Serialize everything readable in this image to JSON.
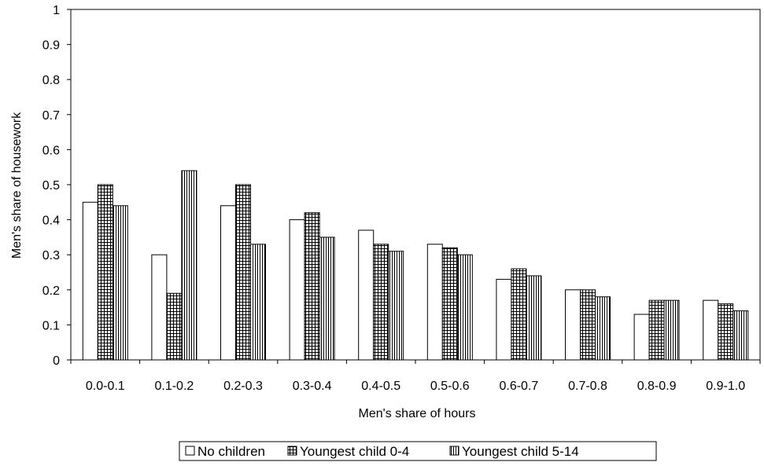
{
  "chart_data": {
    "type": "bar",
    "title": "",
    "xlabel": "Men's share of hours",
    "ylabel": "Men's share of housework",
    "ylim": [
      0,
      1
    ],
    "yticks": [
      "0",
      "0.1",
      "0.2",
      "0.3",
      "0.4",
      "0.5",
      "0.6",
      "0.7",
      "0.8",
      "0.9",
      "1"
    ],
    "grid": false,
    "legend_position": "bottom",
    "categories": [
      "0.0-0.1",
      "0.1-0.2",
      "0.2-0.3",
      "0.3-0.4",
      "0.4-0.5",
      "0.5-0.6",
      "0.6-0.7",
      "0.7-0.8",
      "0.8-0.9",
      "0.9-1.0"
    ],
    "series": [
      {
        "name": "No children",
        "pattern": "solid-white",
        "values": [
          0.45,
          0.3,
          0.44,
          0.4,
          0.37,
          0.33,
          0.23,
          0.2,
          0.13,
          0.17
        ]
      },
      {
        "name": "Youngest child 0-4",
        "pattern": "grid",
        "values": [
          0.5,
          0.19,
          0.5,
          0.42,
          0.33,
          0.32,
          0.26,
          0.2,
          0.17,
          0.16
        ]
      },
      {
        "name": "Youngest child 5-14",
        "pattern": "vertical-lines",
        "values": [
          0.44,
          0.54,
          0.33,
          0.35,
          0.31,
          0.3,
          0.24,
          0.18,
          0.17,
          0.14
        ]
      }
    ]
  }
}
